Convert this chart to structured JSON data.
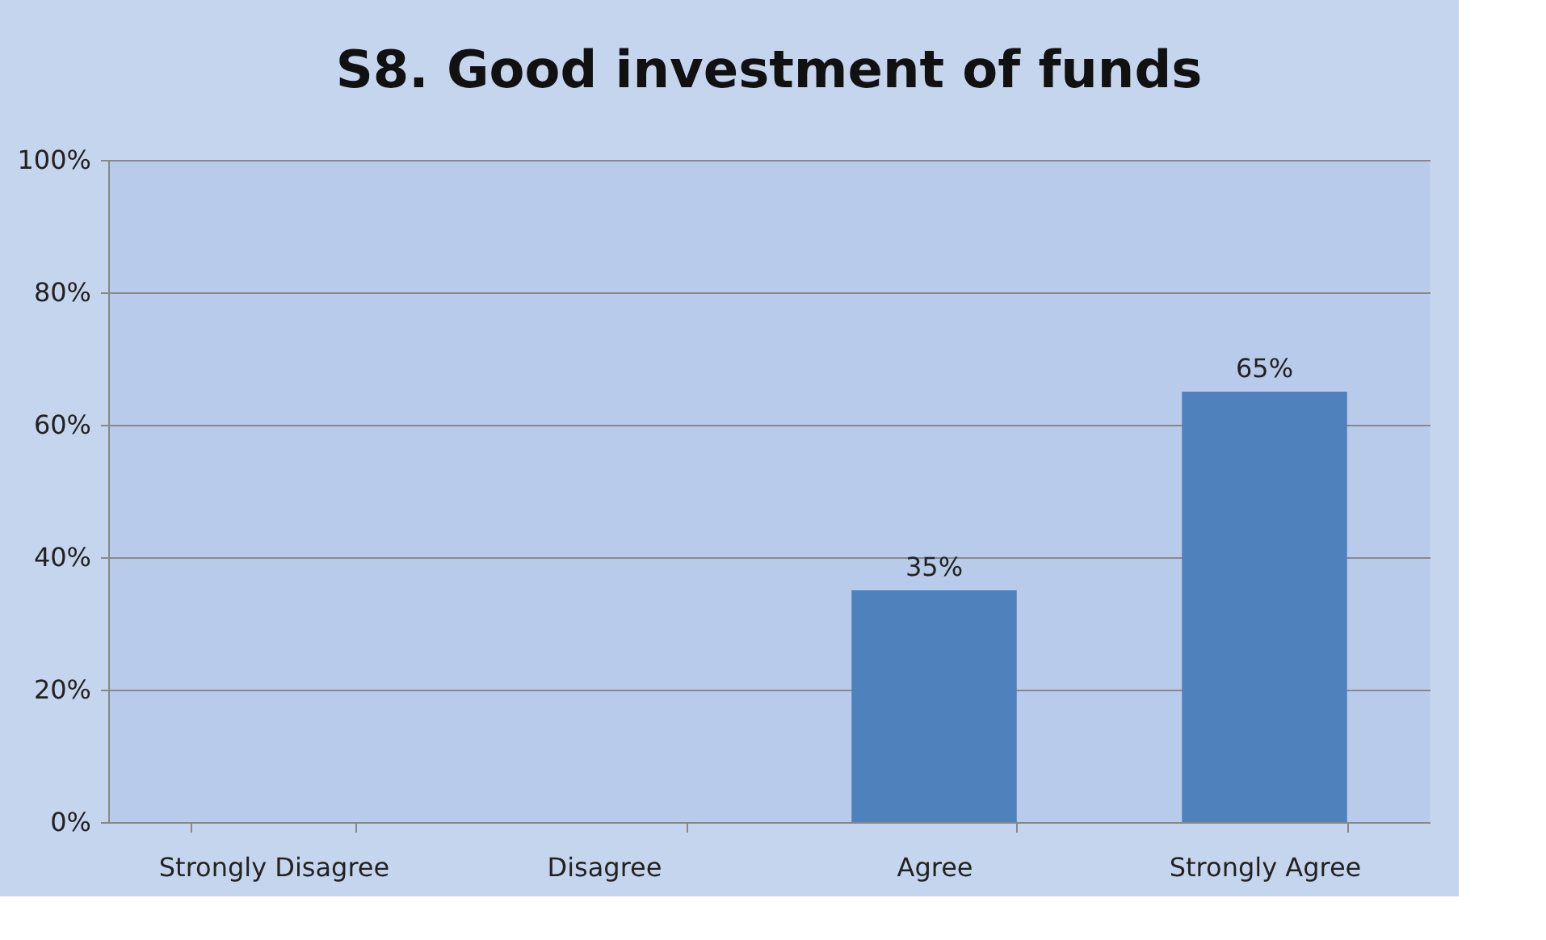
{
  "chart_data": {
    "type": "bar",
    "title": "S8. Good investment of funds",
    "categories": [
      "Strongly Disagree",
      "Disagree",
      "Agree",
      "Strongly Agree"
    ],
    "values": [
      0,
      0,
      35,
      65
    ],
    "color": "#4f81bd",
    "value_labels": [
      null,
      null,
      "35%",
      "65%"
    ],
    "ylim": [
      0,
      100
    ],
    "yticks": [
      {
        "value": 0,
        "label": "0%"
      },
      {
        "value": 20,
        "label": "20%"
      },
      {
        "value": 40,
        "label": "40%"
      },
      {
        "value": 60,
        "label": "60%"
      },
      {
        "value": 80,
        "label": "80%"
      },
      {
        "value": 100,
        "label": "100%"
      }
    ],
    "grid": "y"
  }
}
